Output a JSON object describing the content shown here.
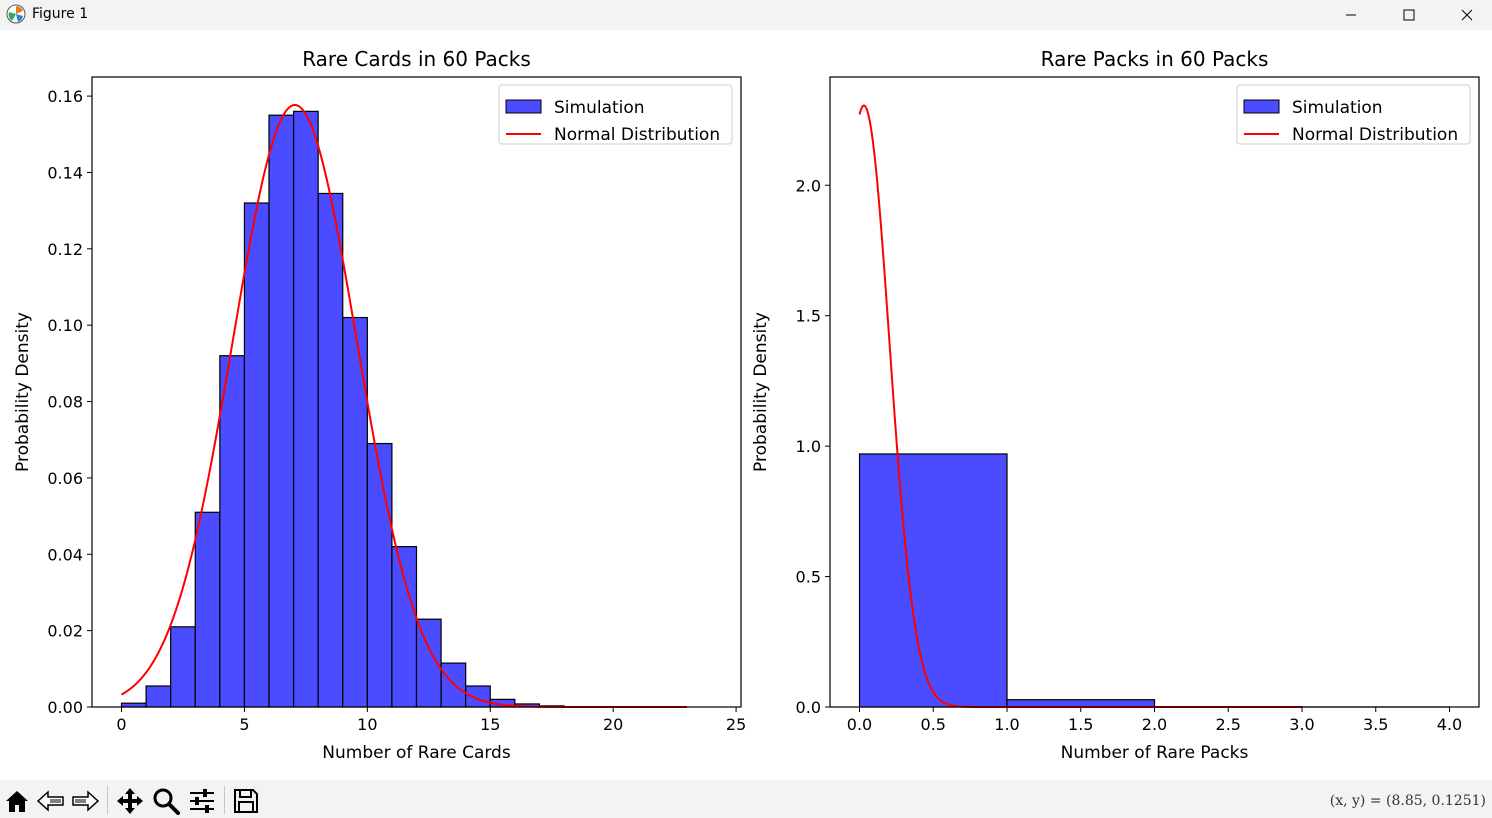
{
  "window": {
    "title": "Figure 1",
    "icon": "matplotlib-icon",
    "controls": [
      "minimize-icon",
      "maximize-icon",
      "close-icon"
    ]
  },
  "toolbar": {
    "buttons": [
      "home-icon",
      "back-icon",
      "forward-icon",
      "pan-icon",
      "zoom-icon",
      "configure-subplots-icon",
      "save-icon"
    ],
    "coords": "(x, y) = (8.85, 0.1251)"
  },
  "colors": {
    "bar": "#4b4bff",
    "edge": "#000000",
    "curve": "#ff0000"
  },
  "chart_data": [
    {
      "type": "bar",
      "title": "Rare Cards in 60 Packs",
      "xlabel": "Number of Rare Cards",
      "ylabel": "Probability Density",
      "xlim": [
        -1.2,
        25.2
      ],
      "ylim": [
        0,
        0.165
      ],
      "xticks": [
        0,
        5,
        10,
        15,
        20,
        25
      ],
      "yticks": [
        0.0,
        0.02,
        0.04,
        0.06,
        0.08,
        0.1,
        0.12,
        0.14,
        0.16
      ],
      "ytick_labels": [
        "0.00",
        "0.02",
        "0.04",
        "0.06",
        "0.08",
        "0.10",
        "0.12",
        "0.14",
        "0.16"
      ],
      "grid": false,
      "legend": {
        "placement": "upper right",
        "entries": [
          "Simulation",
          "Normal Distribution"
        ]
      },
      "series": [
        {
          "name": "Simulation",
          "kind": "histogram",
          "bins": [
            [
              0,
              1
            ],
            [
              1,
              2
            ],
            [
              2,
              3
            ],
            [
              3,
              4
            ],
            [
              4,
              5
            ],
            [
              5,
              6
            ],
            [
              6,
              7
            ],
            [
              7,
              8
            ],
            [
              8,
              9
            ],
            [
              9,
              10
            ],
            [
              10,
              11
            ],
            [
              11,
              12
            ],
            [
              12,
              13
            ],
            [
              13,
              14
            ],
            [
              14,
              15
            ],
            [
              15,
              16
            ],
            [
              16,
              17
            ],
            [
              17,
              18
            ],
            [
              18,
              19
            ],
            [
              19,
              20
            ],
            [
              20,
              21
            ],
            [
              21,
              22
            ],
            [
              22,
              23
            ],
            [
              23,
              24
            ]
          ],
          "values": [
            0.001,
            0.0055,
            0.021,
            0.051,
            0.092,
            0.132,
            0.155,
            0.156,
            0.1345,
            0.102,
            0.069,
            0.042,
            0.023,
            0.0115,
            0.0055,
            0.002,
            0.0008,
            0.0003,
            0.0001,
            5e-05,
            2e-05,
            1e-05,
            0,
            0
          ]
        },
        {
          "name": "Normal Distribution",
          "kind": "normal-pdf",
          "mean": 7.05,
          "std": 2.53,
          "x_range": [
            0,
            23
          ]
        }
      ]
    },
    {
      "type": "bar",
      "title": "Rare Packs in 60 Packs",
      "xlabel": "Number of Rare Packs",
      "ylabel": "Probability Density",
      "xlim": [
        -0.2,
        4.2
      ],
      "ylim": [
        0,
        2.415
      ],
      "xticks": [
        0.0,
        0.5,
        1.0,
        1.5,
        2.0,
        2.5,
        3.0,
        3.5,
        4.0
      ],
      "xtick_labels": [
        "0.0",
        "0.5",
        "1.0",
        "1.5",
        "2.0",
        "2.5",
        "3.0",
        "3.5",
        "4.0"
      ],
      "yticks": [
        0.0,
        0.5,
        1.0,
        1.5,
        2.0
      ],
      "ytick_labels": [
        "0.0",
        "0.5",
        "1.0",
        "1.5",
        "2.0"
      ],
      "grid": false,
      "legend": {
        "placement": "upper right",
        "entries": [
          "Simulation",
          "Normal Distribution"
        ]
      },
      "series": [
        {
          "name": "Simulation",
          "kind": "histogram",
          "bins": [
            [
              0,
              1
            ],
            [
              1,
              2
            ],
            [
              2,
              3
            ],
            [
              3,
              4
            ]
          ],
          "values": [
            0.97,
            0.028,
            0.001,
            0.0001
          ]
        },
        {
          "name": "Normal Distribution",
          "kind": "normal-pdf",
          "mean": 0.03,
          "std": 0.173,
          "x_range": [
            0,
            3
          ]
        }
      ]
    }
  ]
}
